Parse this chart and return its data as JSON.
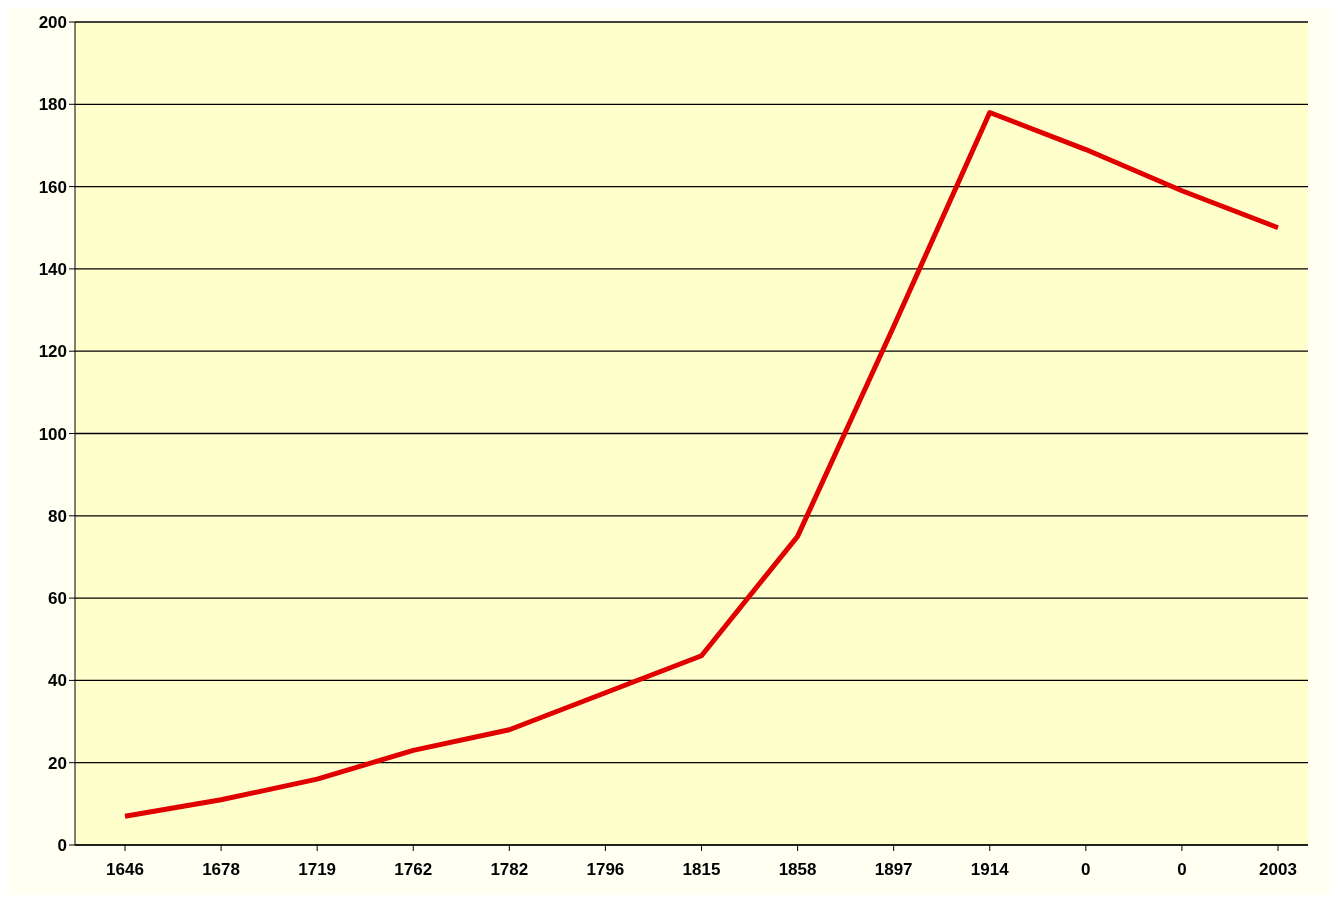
{
  "chart_data": {
    "type": "line",
    "categories": [
      "1646",
      "1678",
      "1719",
      "1762",
      "1782",
      "1796",
      "1815",
      "1858",
      "1897",
      "1914",
      "0",
      "0",
      "2003"
    ],
    "series": [
      {
        "color": "#e00000",
        "values": [
          7,
          11,
          16,
          23,
          28,
          37,
          46,
          75,
          126,
          178,
          169,
          159,
          150
        ]
      }
    ],
    "ylim": [
      0,
      200
    ],
    "yticks": [
      0,
      20,
      40,
      60,
      80,
      100,
      120,
      140,
      160,
      180,
      200
    ],
    "grid": "y",
    "legend": false,
    "marker": "none",
    "line_style": "solid"
  }
}
